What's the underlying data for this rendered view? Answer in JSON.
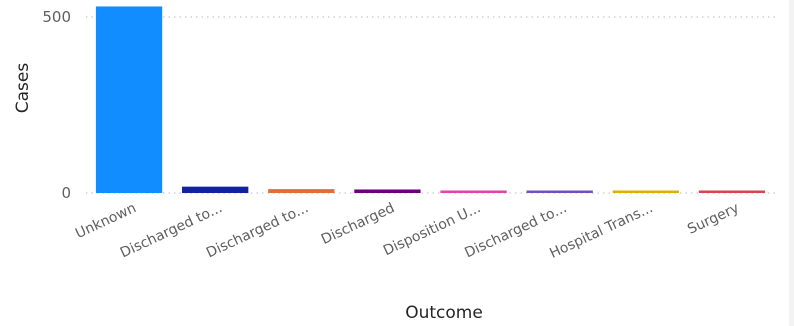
{
  "chart_data": {
    "type": "bar",
    "title": "",
    "xlabel": "Outcome",
    "ylabel": "Cases",
    "categories": [
      "Unknown",
      "Discharged to...",
      "Discharged to...",
      "Discharged",
      "Disposition U...",
      "Discharged to...",
      "Hospital Trans...",
      "Surgery"
    ],
    "values": [
      530,
      18,
      11,
      10,
      7,
      5,
      4,
      3
    ],
    "colors": [
      "#118dff",
      "#12239e",
      "#e66c37",
      "#6b007b",
      "#e044a7",
      "#744ec2",
      "#d9b300",
      "#d64550"
    ],
    "ylim": [
      0,
      540
    ],
    "yticks": [
      0,
      500
    ],
    "grid": true,
    "legend": "none"
  }
}
